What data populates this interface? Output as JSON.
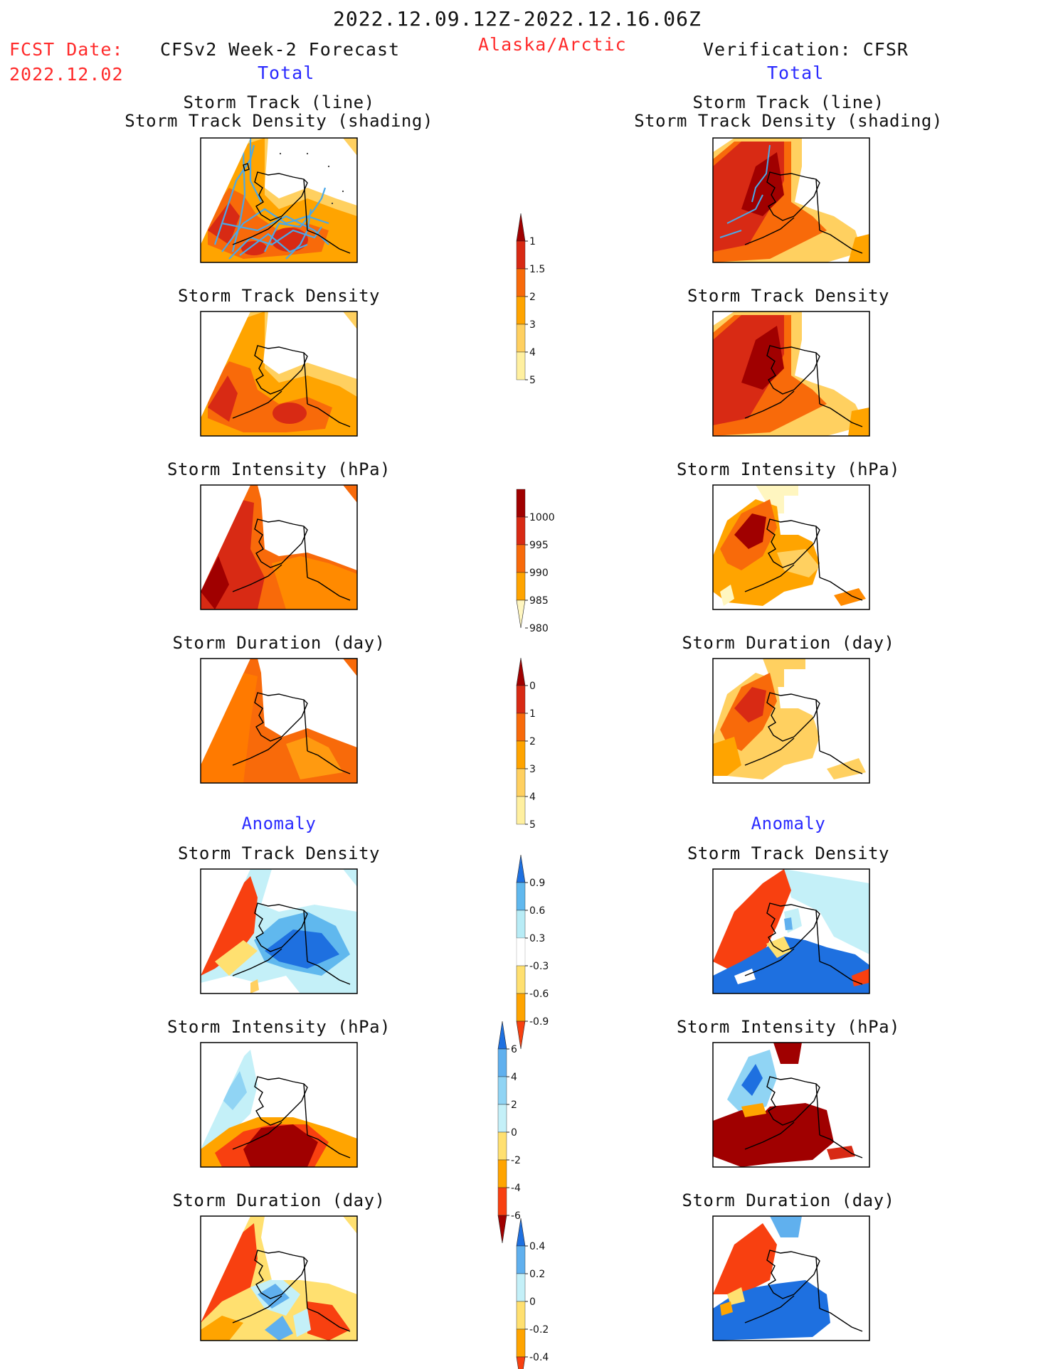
{
  "header": {
    "period": "2022.12.09.12Z-2022.12.16.06Z",
    "fcst_label": "FCST Date:",
    "fcst_date": "2022.12.02",
    "forecast_title": "CFSv2 Week-2 Forecast",
    "region": "Alaska/Arctic",
    "verification_title": "Verification: CFSR",
    "total_left": "Total",
    "total_right": "Total",
    "anomaly_left": "Anomaly",
    "anomaly_right": "Anomaly"
  },
  "colors": {
    "title_red": "#ff2a2a",
    "title_blue": "#2a2aff",
    "track_line": "#4aa8e8",
    "land_outline": "#000000"
  },
  "panel_titles": {
    "track_line": "Storm Track (line)",
    "track_shading": "Storm Track Density (shading)",
    "density": "Storm Track Density",
    "intensity": "Storm Intensity (hPa)",
    "duration": "Storm Duration (day)"
  },
  "chart_data": [
    {
      "type": "heatmap",
      "name": "colorbar-track-density",
      "levels": [
        "1",
        "1.5",
        "2",
        "3",
        "4",
        "5"
      ],
      "colors": [
        "#fff0a0",
        "#ffd060",
        "#ffa400",
        "#f86a0a",
        "#d82a14",
        "#a00000"
      ],
      "used_by": [
        "Storm Track (line) / Storm Track Density (shading)",
        "Storm Track Density"
      ]
    },
    {
      "type": "heatmap",
      "name": "colorbar-intensity",
      "levels": [
        "1000",
        "995",
        "990",
        "985",
        "980"
      ],
      "colors": [
        "#fff6c0",
        "#ffa400",
        "#f86a0a",
        "#d82a14",
        "#a00000"
      ],
      "used_by": [
        "Storm Intensity (hPa)"
      ]
    },
    {
      "type": "heatmap",
      "name": "colorbar-duration",
      "levels": [
        "0",
        "1",
        "2",
        "3",
        "4",
        "5"
      ],
      "colors": [
        "#fff0a0",
        "#ffd060",
        "#ffa400",
        "#f86a0a",
        "#d82a14",
        "#a00000"
      ],
      "used_by": [
        "Storm Duration (day)"
      ]
    },
    {
      "type": "heatmap",
      "name": "colorbar-anomaly-density",
      "levels": [
        "0.9",
        "0.6",
        "0.3",
        "-0.3",
        "-0.6",
        "-0.9"
      ],
      "colors": [
        "#f84010",
        "#ffa400",
        "#ffe070",
        "#ffffff",
        "#b8ecf6",
        "#60b8ee",
        "#1e70e0"
      ],
      "used_by": [
        "Anomaly Storm Track Density"
      ]
    },
    {
      "type": "heatmap",
      "name": "colorbar-anomaly-intensity",
      "levels": [
        "6",
        "4",
        "2",
        "0",
        "-2",
        "-4",
        "-6"
      ],
      "colors": [
        "#a00000",
        "#f84010",
        "#ffa400",
        "#ffe070",
        "#c4f0f8",
        "#90d4f4",
        "#60b0ee",
        "#1e70e0"
      ],
      "used_by": [
        "Anomaly Storm Intensity (hPa)"
      ]
    },
    {
      "type": "heatmap",
      "name": "colorbar-anomaly-duration",
      "levels": [
        "0.4",
        "0.2",
        "0",
        "-0.2",
        "-0.4"
      ],
      "colors": [
        "#f84010",
        "#ffa400",
        "#ffe070",
        "#c4f0f8",
        "#60b0ee",
        "#1e70e0"
      ],
      "used_by": [
        "Anomaly Storm Duration (day)"
      ]
    }
  ]
}
